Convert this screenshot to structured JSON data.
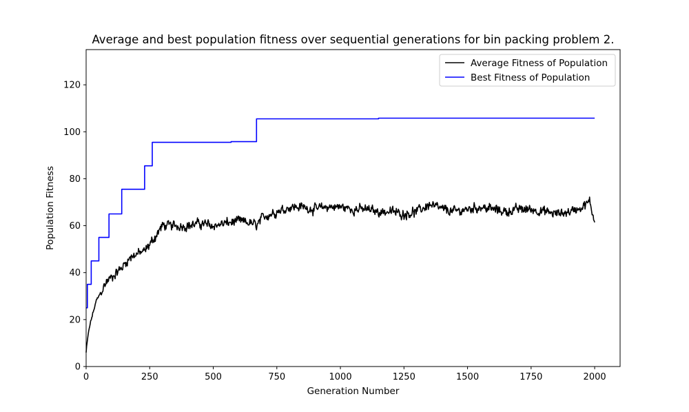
{
  "chart_data": {
    "type": "line",
    "title": "Average and best population fitness over sequential generations for bin packing problem 2.",
    "xlabel": "Generation Number",
    "ylabel": "Population Fitness",
    "xlim": [
      0,
      2100
    ],
    "ylim": [
      0,
      135
    ],
    "xticks": [
      0,
      250,
      500,
      750,
      1000,
      1250,
      1500,
      1750,
      2000
    ],
    "yticks": [
      0,
      20,
      40,
      60,
      80,
      100,
      120
    ],
    "grid": false,
    "legend_position": "top-right",
    "series": [
      {
        "name": "Average Fitness of Population",
        "color": "#000000",
        "style": "noisy",
        "noise": 2.6,
        "x": [
          0,
          5,
          10,
          20,
          30,
          40,
          50,
          60,
          80,
          100,
          120,
          140,
          160,
          180,
          200,
          230,
          250,
          270,
          300,
          350,
          400,
          450,
          500,
          550,
          600,
          650,
          670,
          700,
          750,
          800,
          850,
          900,
          950,
          1000,
          1050,
          1100,
          1150,
          1200,
          1250,
          1300,
          1350,
          1400,
          1450,
          1500,
          1550,
          1600,
          1650,
          1700,
          1750,
          1800,
          1850,
          1900,
          1950,
          1980,
          1990,
          2000
        ],
        "y": [
          6,
          11,
          15,
          20,
          24,
          28,
          30,
          32,
          36,
          38,
          40,
          42,
          45,
          47,
          48,
          49,
          52,
          55,
          60,
          60,
          60,
          61,
          60,
          61,
          62,
          61,
          60,
          64,
          66,
          68,
          68,
          67,
          68,
          68,
          67,
          67,
          66,
          66,
          65,
          66,
          69,
          67,
          66,
          67,
          68,
          67,
          66,
          67,
          67,
          66,
          65,
          66,
          68,
          70,
          66,
          62
        ]
      },
      {
        "name": "Best Fitness of Population",
        "color": "#0000ff",
        "style": "step",
        "x": [
          0,
          5,
          20,
          50,
          90,
          140,
          230,
          260,
          570,
          670,
          1150,
          2000
        ],
        "y": [
          25,
          35,
          45,
          55,
          65,
          75.5,
          85.5,
          95.5,
          95.8,
          105.5,
          105.8,
          105.8
        ]
      }
    ]
  }
}
